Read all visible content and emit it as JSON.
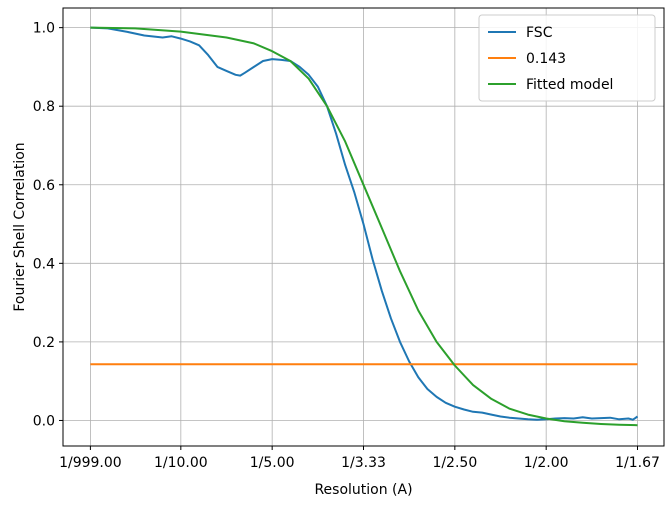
{
  "chart_data": {
    "type": "line",
    "title": "",
    "xlabel": "Resolution (A)",
    "ylabel": "Fourier Shell Correlation",
    "xlim": [
      -0.029,
      0.629
    ],
    "ylim": [
      -0.065,
      1.05
    ],
    "grid": true,
    "legend_position": "top-right",
    "x_ticks": [
      {
        "value": 0.001,
        "label": "1/999.00"
      },
      {
        "value": 0.1,
        "label": "1/10.00"
      },
      {
        "value": 0.2,
        "label": "1/5.00"
      },
      {
        "value": 0.3,
        "label": "1/3.33"
      },
      {
        "value": 0.4,
        "label": "1/2.50"
      },
      {
        "value": 0.5,
        "label": "1/2.00"
      },
      {
        "value": 0.6,
        "label": "1/1.67"
      }
    ],
    "y_ticks": [
      {
        "value": 0.0,
        "label": "0.0"
      },
      {
        "value": 0.2,
        "label": "0.2"
      },
      {
        "value": 0.4,
        "label": "0.4"
      },
      {
        "value": 0.6,
        "label": "0.6"
      },
      {
        "value": 0.8,
        "label": "0.8"
      },
      {
        "value": 1.0,
        "label": "1.0"
      }
    ],
    "series": [
      {
        "name": "FSC",
        "color": "#1f77b4",
        "x": [
          0.001,
          0.02,
          0.04,
          0.06,
          0.08,
          0.09,
          0.1,
          0.11,
          0.12,
          0.13,
          0.14,
          0.15,
          0.16,
          0.165,
          0.17,
          0.18,
          0.19,
          0.2,
          0.21,
          0.22,
          0.23,
          0.24,
          0.25,
          0.26,
          0.27,
          0.28,
          0.29,
          0.3,
          0.31,
          0.32,
          0.33,
          0.34,
          0.35,
          0.36,
          0.37,
          0.38,
          0.39,
          0.4,
          0.41,
          0.42,
          0.43,
          0.44,
          0.45,
          0.46,
          0.47,
          0.48,
          0.49,
          0.5,
          0.51,
          0.52,
          0.53,
          0.54,
          0.55,
          0.56,
          0.57,
          0.58,
          0.59,
          0.595,
          0.6
        ],
        "y": [
          1.0,
          0.998,
          0.99,
          0.98,
          0.975,
          0.978,
          0.972,
          0.965,
          0.955,
          0.93,
          0.9,
          0.89,
          0.88,
          0.878,
          0.885,
          0.9,
          0.915,
          0.92,
          0.918,
          0.915,
          0.9,
          0.88,
          0.85,
          0.8,
          0.73,
          0.65,
          0.58,
          0.5,
          0.41,
          0.33,
          0.26,
          0.2,
          0.15,
          0.11,
          0.08,
          0.06,
          0.045,
          0.035,
          0.028,
          0.022,
          0.02,
          0.015,
          0.01,
          0.007,
          0.005,
          0.003,
          0.002,
          0.003,
          0.005,
          0.006,
          0.005,
          0.008,
          0.005,
          0.006,
          0.007,
          0.003,
          0.005,
          0.002,
          0.01
        ]
      },
      {
        "name": "0.143",
        "color": "#ff7f0e",
        "x": [
          0.001,
          0.6
        ],
        "y": [
          0.143,
          0.143
        ]
      },
      {
        "name": "Fitted model",
        "color": "#2ca02c",
        "x": [
          0.001,
          0.05,
          0.1,
          0.15,
          0.18,
          0.2,
          0.22,
          0.24,
          0.26,
          0.28,
          0.3,
          0.32,
          0.34,
          0.36,
          0.38,
          0.4,
          0.42,
          0.44,
          0.46,
          0.48,
          0.5,
          0.52,
          0.54,
          0.56,
          0.58,
          0.6
        ],
        "y": [
          1.0,
          0.998,
          0.99,
          0.975,
          0.96,
          0.94,
          0.915,
          0.87,
          0.8,
          0.71,
          0.6,
          0.49,
          0.38,
          0.28,
          0.2,
          0.14,
          0.09,
          0.055,
          0.03,
          0.015,
          0.005,
          -0.002,
          -0.006,
          -0.009,
          -0.011,
          -0.012
        ]
      }
    ]
  }
}
